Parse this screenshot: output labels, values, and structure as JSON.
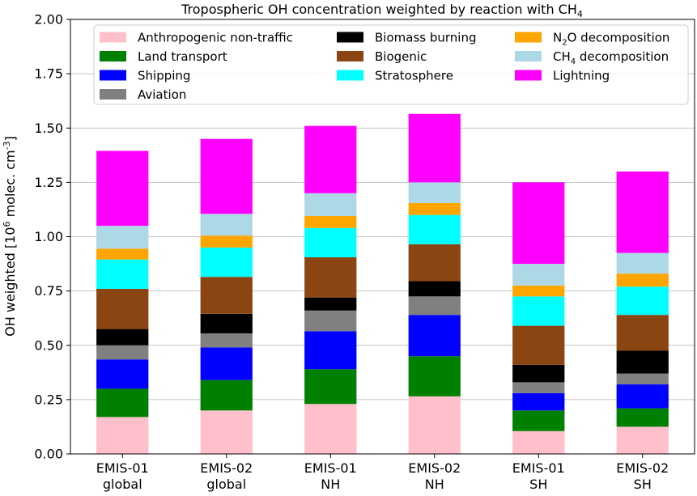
{
  "chart_data": {
    "type": "bar",
    "stacked": true,
    "title": "Tropospheric OH concentration weighted by reaction with CH",
    "title_sub": "4",
    "ylabel_pre": "OH weighted [10",
    "ylabel_sup1": "6",
    "ylabel_mid": " molec. cm",
    "ylabel_sup2": "-3",
    "ylabel_post": "]",
    "ylim": [
      0,
      2.0
    ],
    "yticks": [
      "0.00",
      "0.25",
      "0.50",
      "0.75",
      "1.00",
      "1.25",
      "1.50",
      "1.75",
      "2.00"
    ],
    "grid": "y",
    "legend_placement": "top, 3 columns",
    "categories": [
      [
        "EMIS-01",
        "global"
      ],
      [
        "EMIS-02",
        "global"
      ],
      [
        "EMIS-01",
        "NH"
      ],
      [
        "EMIS-02",
        "NH"
      ],
      [
        "EMIS-01",
        "SH"
      ],
      [
        "EMIS-02",
        "SH"
      ]
    ],
    "series": [
      {
        "name": "Anthropogenic non-traffic",
        "color": "#ffc0cb",
        "values": [
          0.17,
          0.2,
          0.23,
          0.265,
          0.105,
          0.125
        ]
      },
      {
        "name": "Land transport",
        "color": "#008000",
        "values": [
          0.13,
          0.14,
          0.16,
          0.185,
          0.095,
          0.085
        ]
      },
      {
        "name": "Shipping",
        "color": "#0000ff",
        "values": [
          0.135,
          0.15,
          0.175,
          0.19,
          0.08,
          0.11
        ]
      },
      {
        "name": "Aviation",
        "color": "#808080",
        "values": [
          0.065,
          0.065,
          0.095,
          0.085,
          0.05,
          0.05
        ]
      },
      {
        "name": "Biomass burning",
        "color": "#000000",
        "values": [
          0.075,
          0.09,
          0.06,
          0.07,
          0.08,
          0.105
        ]
      },
      {
        "name": "Biogenic",
        "color": "#8b4513",
        "values": [
          0.185,
          0.17,
          0.185,
          0.17,
          0.18,
          0.165
        ]
      },
      {
        "name": "Stratosphere",
        "color": "#00ffff",
        "values": [
          0.135,
          0.135,
          0.135,
          0.135,
          0.135,
          0.13
        ]
      },
      {
        "name": "N2O decomposition",
        "name_pre": "N",
        "name_sub": "2",
        "name_post": "O decomposition",
        "color": "#ffa500",
        "values": [
          0.05,
          0.055,
          0.055,
          0.055,
          0.05,
          0.06
        ]
      },
      {
        "name": "CH4 decomposition",
        "name_pre": "CH",
        "name_sub": "4",
        "name_post": " decomposition",
        "color": "#add8e6",
        "values": [
          0.105,
          0.1,
          0.105,
          0.095,
          0.1,
          0.095
        ]
      },
      {
        "name": "Lightning",
        "color": "#ff00ff",
        "values": [
          0.345,
          0.345,
          0.31,
          0.315,
          0.375,
          0.375
        ]
      }
    ]
  }
}
